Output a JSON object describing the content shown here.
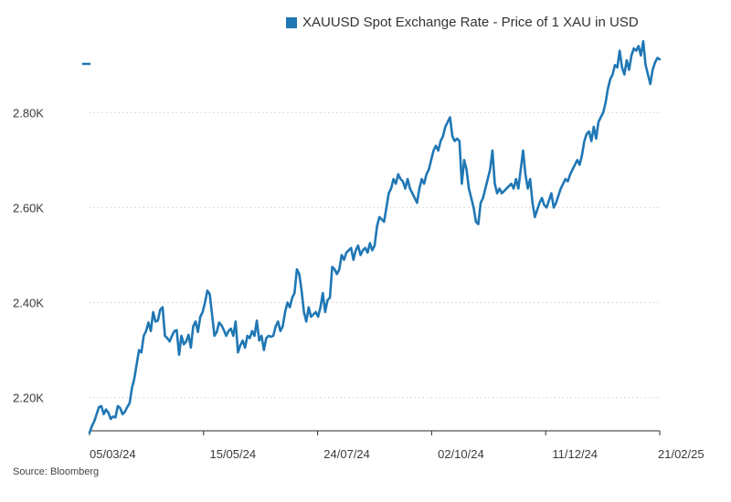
{
  "chart_data": {
    "type": "line",
    "legend": "XAUUSD Spot Exchange Rate - Price of 1 XAU in USD",
    "source": "Source: Bloomberg",
    "colors": {
      "series": "#1f77b4",
      "grid": "#cfcfcf",
      "axis": "#2b2b2b"
    },
    "x_tick_labels": [
      "05/03/24",
      "15/05/24",
      "24/07/24",
      "02/10/24",
      "11/12/24",
      "21/02/25"
    ],
    "y_tick_labels": [
      "2.20K",
      "2.40K",
      "2.60K",
      "2.80K"
    ],
    "y_ticks": [
      2200,
      2400,
      2600,
      2800
    ],
    "ylim": [
      2130,
      2960
    ],
    "x_range_index": [
      0,
      250
    ],
    "x_tick_index": [
      0,
      50,
      100,
      150,
      200,
      250
    ],
    "series": [
      {
        "name": "XAUUSD Spot Exchange Rate - Price of 1 XAU in USD",
        "values": [
          2126,
          2140,
          2150,
          2165,
          2180,
          2182,
          2165,
          2175,
          2168,
          2155,
          2160,
          2158,
          2182,
          2178,
          2165,
          2170,
          2180,
          2188,
          2220,
          2240,
          2270,
          2300,
          2295,
          2330,
          2340,
          2358,
          2340,
          2380,
          2360,
          2362,
          2385,
          2390,
          2330,
          2325,
          2318,
          2330,
          2340,
          2342,
          2290,
          2330,
          2312,
          2318,
          2332,
          2305,
          2350,
          2360,
          2338,
          2370,
          2380,
          2400,
          2425,
          2418,
          2375,
          2330,
          2338,
          2358,
          2352,
          2342,
          2330,
          2340,
          2345,
          2330,
          2360,
          2295,
          2310,
          2320,
          2305,
          2330,
          2325,
          2340,
          2330,
          2362,
          2320,
          2330,
          2300,
          2325,
          2330,
          2328,
          2330,
          2350,
          2360,
          2340,
          2350,
          2380,
          2400,
          2390,
          2410,
          2420,
          2470,
          2460,
          2425,
          2380,
          2360,
          2390,
          2370,
          2375,
          2380,
          2370,
          2390,
          2420,
          2380,
          2405,
          2410,
          2475,
          2470,
          2460,
          2470,
          2500,
          2490,
          2505,
          2510,
          2515,
          2490,
          2510,
          2520,
          2500,
          2510,
          2515,
          2505,
          2525,
          2510,
          2520,
          2560,
          2580,
          2575,
          2570,
          2600,
          2630,
          2640,
          2660,
          2650,
          2670,
          2660,
          2655,
          2640,
          2660,
          2640,
          2630,
          2620,
          2610,
          2640,
          2660,
          2650,
          2670,
          2680,
          2700,
          2720,
          2730,
          2720,
          2740,
          2750,
          2770,
          2780,
          2790,
          2750,
          2740,
          2745,
          2740,
          2650,
          2700,
          2680,
          2640,
          2620,
          2600,
          2570,
          2565,
          2610,
          2620,
          2640,
          2660,
          2680,
          2720,
          2650,
          2630,
          2640,
          2630,
          2635,
          2640,
          2645,
          2650,
          2640,
          2660,
          2640,
          2680,
          2720,
          2670,
          2640,
          2660,
          2610,
          2580,
          2595,
          2610,
          2620,
          2605,
          2600,
          2615,
          2630,
          2600,
          2610,
          2625,
          2640,
          2650,
          2660,
          2655,
          2670,
          2680,
          2690,
          2700,
          2690,
          2710,
          2740,
          2755,
          2760,
          2740,
          2770,
          2745,
          2780,
          2790,
          2800,
          2820,
          2850,
          2870,
          2880,
          2900,
          2895,
          2930,
          2895,
          2880,
          2910,
          2890,
          2920,
          2935,
          2930,
          2940,
          2920,
          2950,
          2900,
          2880,
          2860,
          2890,
          2905,
          2915,
          2912
        ]
      }
    ]
  }
}
